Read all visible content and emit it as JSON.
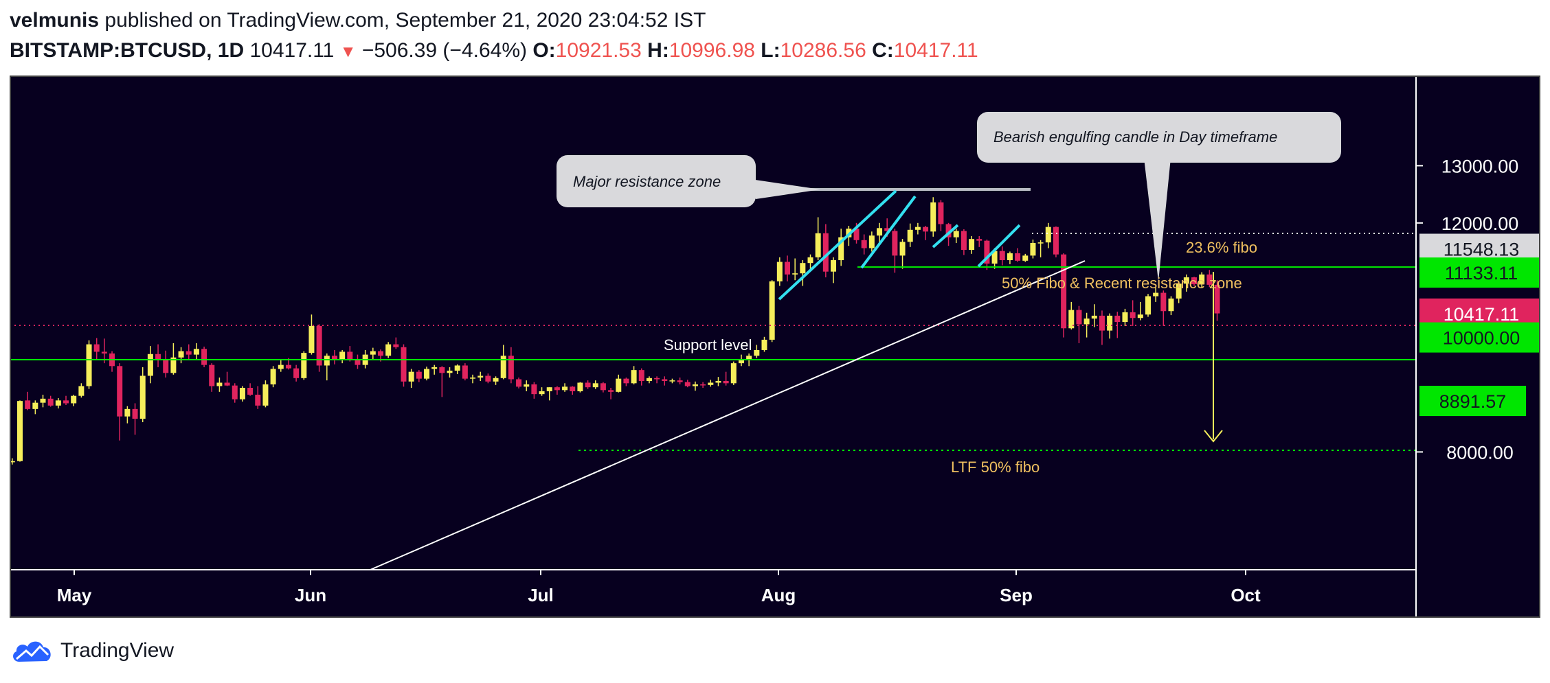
{
  "header": {
    "author": "velmunis",
    "published_text": "published on TradingView.com, September 21, 2020 23:04:52 IST",
    "symbol": "BITSTAMP:BTCUSD, 1D",
    "last": "10417.11",
    "arrow": "▼",
    "change": "−506.39 (−4.64%)",
    "o_label": "O:",
    "o_value": "10921.53",
    "h_label": "H:",
    "h_value": "10996.98",
    "l_label": "L:",
    "l_value": "10286.56",
    "c_label": "C:",
    "c_value": "10417.11"
  },
  "footer": {
    "brand": "TradingView"
  },
  "colors": {
    "background": "#07001f",
    "up": "#f6ee5b",
    "down": "#e0245e",
    "support": "#00e600",
    "annotation_text": "#f0c060",
    "callout_bg": "#d9d9dc",
    "trend_cyan": "#33e0f0"
  },
  "chart_data": {
    "type": "candlestick",
    "title": "BITSTAMP:BTCUSD, 1D",
    "x_axis": {
      "tick_labels": [
        "May",
        "Jun",
        "Jul",
        "Aug",
        "Sep",
        "Oct"
      ],
      "ticks_day_index": [
        0,
        31,
        61,
        92,
        123,
        153
      ],
      "start": "2020-04-28",
      "end": "2020-10-20"
    },
    "y_axis": {
      "tick_labels": [
        "8000.00",
        "12000.00",
        "13000.00"
      ],
      "ticks": [
        8000,
        12000,
        13000
      ],
      "ylim": [
        7470,
        13400
      ]
    },
    "price_labels": [
      {
        "value": 11548.13,
        "text": "11548.13",
        "style": "gray"
      },
      {
        "value": 11133.11,
        "text": "11133.11",
        "style": "green"
      },
      {
        "value": 10417.11,
        "text": "10417.11",
        "style": "red"
      },
      {
        "value": 10000.0,
        "text": "10000.00",
        "style": "green"
      },
      {
        "value": 8891.57,
        "text": "8891.57",
        "style": "green"
      }
    ],
    "annotations": {
      "major_resistance": "Major resistance zone",
      "bearish": "Bearish  engulfing candle in Day timeframe",
      "fibo236": "23.6% fibo",
      "fibo50": "50% Fibo & Recent resistance zone",
      "support": "Support level",
      "ltf": "LTF 50% fibo"
    },
    "candles": [
      [
        7700,
        7760,
        7540,
        7580
      ],
      [
        7580,
        7680,
        7520,
        7650
      ],
      [
        7650,
        7720,
        7560,
        7600
      ],
      [
        7600,
        7750,
        7580,
        7720
      ],
      [
        7720,
        7800,
        7680,
        7780
      ],
      [
        7780,
        7860,
        7740,
        7820
      ],
      [
        7820,
        7890,
        7780,
        7840
      ],
      [
        7840,
        8900,
        7830,
        8890
      ],
      [
        8900,
        9050,
        8730,
        8750
      ],
      [
        8750,
        8900,
        8660,
        8860
      ],
      [
        8860,
        9000,
        8780,
        8930
      ],
      [
        8930,
        8980,
        8790,
        8810
      ],
      [
        8810,
        8940,
        8760,
        8900
      ],
      [
        8900,
        8980,
        8820,
        8850
      ],
      [
        8850,
        9000,
        8800,
        8980
      ],
      [
        8980,
        9200,
        8950,
        9150
      ],
      [
        9150,
        9950,
        9100,
        9880
      ],
      [
        9880,
        9990,
        9600,
        9750
      ],
      [
        9750,
        9980,
        9550,
        9720
      ],
      [
        9720,
        9760,
        9400,
        9500
      ],
      [
        9500,
        9550,
        8200,
        8620
      ],
      [
        8620,
        8800,
        8500,
        8750
      ],
      [
        8750,
        8850,
        8300,
        8580
      ],
      [
        8580,
        9480,
        8520,
        9330
      ],
      [
        9330,
        9850,
        9200,
        9710
      ],
      [
        9710,
        9880,
        9480,
        9600
      ],
      [
        9600,
        9770,
        9300,
        9380
      ],
      [
        9380,
        9900,
        9350,
        9650
      ],
      [
        9650,
        9830,
        9550,
        9760
      ],
      [
        9760,
        9880,
        9600,
        9700
      ],
      [
        9700,
        9900,
        9620,
        9800
      ],
      [
        9800,
        9840,
        9480,
        9520
      ],
      [
        9520,
        9550,
        9050,
        9150
      ],
      [
        9150,
        9300,
        9050,
        9210
      ],
      [
        9210,
        9400,
        9150,
        9160
      ],
      [
        9160,
        9200,
        8860,
        8920
      ],
      [
        8920,
        9150,
        8880,
        9120
      ],
      [
        9120,
        9200,
        8980,
        9000
      ],
      [
        9000,
        9150,
        8750,
        8810
      ],
      [
        8810,
        9250,
        8780,
        9180
      ],
      [
        9180,
        9500,
        9130,
        9450
      ],
      [
        9450,
        9620,
        9400,
        9520
      ],
      [
        9520,
        9640,
        9440,
        9460
      ],
      [
        9460,
        9520,
        9230,
        9290
      ],
      [
        9290,
        9760,
        9260,
        9730
      ],
      [
        9730,
        10400,
        9700,
        10200
      ],
      [
        10200,
        10230,
        9400,
        9510
      ],
      [
        9510,
        9720,
        9250,
        9680
      ],
      [
        9680,
        9780,
        9530,
        9600
      ],
      [
        9600,
        9780,
        9550,
        9750
      ],
      [
        9750,
        9850,
        9580,
        9620
      ],
      [
        9620,
        9700,
        9450,
        9520
      ],
      [
        9520,
        9780,
        9460,
        9700
      ],
      [
        9700,
        9820,
        9600,
        9760
      ],
      [
        9760,
        9790,
        9580,
        9680
      ],
      [
        9680,
        9920,
        9640,
        9880
      ],
      [
        9880,
        10000,
        9800,
        9830
      ],
      [
        9830,
        9880,
        9140,
        9230
      ],
      [
        9230,
        9450,
        9120,
        9400
      ],
      [
        9400,
        9430,
        9220,
        9280
      ],
      [
        9280,
        9490,
        9250,
        9450
      ],
      [
        9450,
        9520,
        9350,
        9480
      ],
      [
        9480,
        9500,
        8960,
        9380
      ],
      [
        9380,
        9480,
        9300,
        9420
      ],
      [
        9420,
        9530,
        9360,
        9510
      ],
      [
        9510,
        9550,
        9250,
        9280
      ],
      [
        9280,
        9350,
        9200,
        9300
      ],
      [
        9300,
        9400,
        9240,
        9330
      ],
      [
        9330,
        9370,
        9200,
        9230
      ],
      [
        9230,
        9320,
        9170,
        9290
      ],
      [
        9290,
        9870,
        9270,
        9680
      ],
      [
        9680,
        9830,
        9200,
        9270
      ],
      [
        9270,
        9300,
        9110,
        9140
      ],
      [
        9140,
        9250,
        9060,
        9180
      ],
      [
        9180,
        9220,
        8930,
        9010
      ],
      [
        9010,
        9130,
        8980,
        9060
      ],
      [
        9060,
        9130,
        8900,
        9130
      ],
      [
        9130,
        9150,
        9000,
        9080
      ],
      [
        9080,
        9200,
        9050,
        9140
      ],
      [
        9140,
        9150,
        9000,
        9060
      ],
      [
        9060,
        9220,
        9040,
        9210
      ],
      [
        9210,
        9250,
        9100,
        9130
      ],
      [
        9130,
        9250,
        9100,
        9200
      ],
      [
        9200,
        9220,
        9040,
        9080
      ],
      [
        9080,
        9120,
        8920,
        9050
      ],
      [
        9050,
        9350,
        9040,
        9280
      ],
      [
        9280,
        9300,
        9150,
        9200
      ],
      [
        9200,
        9500,
        9180,
        9430
      ],
      [
        9430,
        9460,
        9160,
        9240
      ],
      [
        9240,
        9320,
        9200,
        9290
      ],
      [
        9290,
        9320,
        9200,
        9270
      ],
      [
        9270,
        9320,
        9160,
        9240
      ],
      [
        9240,
        9280,
        9200,
        9250
      ],
      [
        9250,
        9300,
        9180,
        9220
      ],
      [
        9220,
        9260,
        9130,
        9150
      ],
      [
        9150,
        9230,
        9070,
        9180
      ],
      [
        9180,
        9220,
        9120,
        9170
      ],
      [
        9170,
        9260,
        9140,
        9210
      ],
      [
        9210,
        9310,
        9150,
        9240
      ],
      [
        9240,
        9400,
        9160,
        9200
      ],
      [
        9200,
        9580,
        9170,
        9550
      ],
      [
        9550,
        9700,
        9500,
        9610
      ],
      [
        9610,
        9720,
        9500,
        9680
      ],
      [
        9680,
        9870,
        9640,
        9780
      ],
      [
        9780,
        10010,
        9750,
        9960
      ],
      [
        9960,
        11000,
        9920,
        10980
      ],
      [
        10980,
        11400,
        10900,
        11320
      ],
      [
        11320,
        11430,
        10980,
        11100
      ],
      [
        11100,
        11380,
        11000,
        11120
      ],
      [
        11120,
        11350,
        10900,
        11300
      ],
      [
        11300,
        11450,
        11200,
        11400
      ],
      [
        11400,
        12100,
        11350,
        11820
      ],
      [
        11820,
        11980,
        11050,
        11150
      ],
      [
        11150,
        11400,
        10950,
        11350
      ],
      [
        11350,
        11900,
        11250,
        11750
      ],
      [
        11750,
        11950,
        11600,
        11900
      ],
      [
        11900,
        12000,
        11640,
        11700
      ],
      [
        11700,
        11800,
        11450,
        11560
      ],
      [
        11560,
        11850,
        11500,
        11780
      ],
      [
        11780,
        12000,
        11650,
        11910
      ],
      [
        11910,
        12080,
        11760,
        11860
      ],
      [
        11860,
        11900,
        11130,
        11430
      ],
      [
        11430,
        11720,
        11200,
        11670
      ],
      [
        11670,
        11990,
        11580,
        11880
      ],
      [
        11880,
        12000,
        11800,
        11930
      ],
      [
        11930,
        11950,
        11700,
        11850
      ],
      [
        11850,
        12450,
        11760,
        12360
      ],
      [
        12360,
        12400,
        11860,
        11980
      ],
      [
        11980,
        12000,
        11600,
        11750
      ],
      [
        11750,
        11900,
        11650,
        11860
      ],
      [
        11860,
        11890,
        11440,
        11530
      ],
      [
        11530,
        11770,
        11460,
        11720
      ],
      [
        11720,
        11770,
        11580,
        11690
      ],
      [
        11690,
        11710,
        11180,
        11290
      ],
      [
        11290,
        11560,
        11200,
        11510
      ],
      [
        11510,
        11590,
        11260,
        11350
      ],
      [
        11350,
        11500,
        11280,
        11470
      ],
      [
        11470,
        11560,
        11320,
        11340
      ],
      [
        11340,
        11460,
        11320,
        11430
      ],
      [
        11430,
        11710,
        11380,
        11650
      ],
      [
        11650,
        11700,
        11400,
        11660
      ],
      [
        11660,
        12000,
        11560,
        11930
      ],
      [
        11930,
        11940,
        11400,
        11450
      ],
      [
        11450,
        11470,
        10000,
        10160
      ],
      [
        10160,
        10620,
        10140,
        10480
      ],
      [
        10480,
        10550,
        9900,
        10230
      ],
      [
        10230,
        10430,
        10000,
        10330
      ],
      [
        10330,
        10580,
        10180,
        10380
      ],
      [
        10380,
        10470,
        9870,
        10120
      ],
      [
        10120,
        10420,
        9980,
        10380
      ],
      [
        10380,
        10450,
        9990,
        10270
      ],
      [
        10270,
        10500,
        10200,
        10440
      ],
      [
        10440,
        10650,
        10200,
        10340
      ],
      [
        10340,
        10620,
        10300,
        10400
      ],
      [
        10400,
        10760,
        10360,
        10720
      ],
      [
        10720,
        10870,
        10620,
        10780
      ],
      [
        10780,
        10820,
        10200,
        10460
      ],
      [
        10460,
        10720,
        10390,
        10680
      ],
      [
        10680,
        10950,
        10600,
        10940
      ],
      [
        10940,
        11100,
        10800,
        11050
      ],
      [
        11050,
        11060,
        10900,
        10930
      ],
      [
        10930,
        11140,
        10870,
        11100
      ],
      [
        11100,
        11180,
        10880,
        10920
      ],
      [
        10920,
        11000,
        10290,
        10420
      ]
    ]
  }
}
